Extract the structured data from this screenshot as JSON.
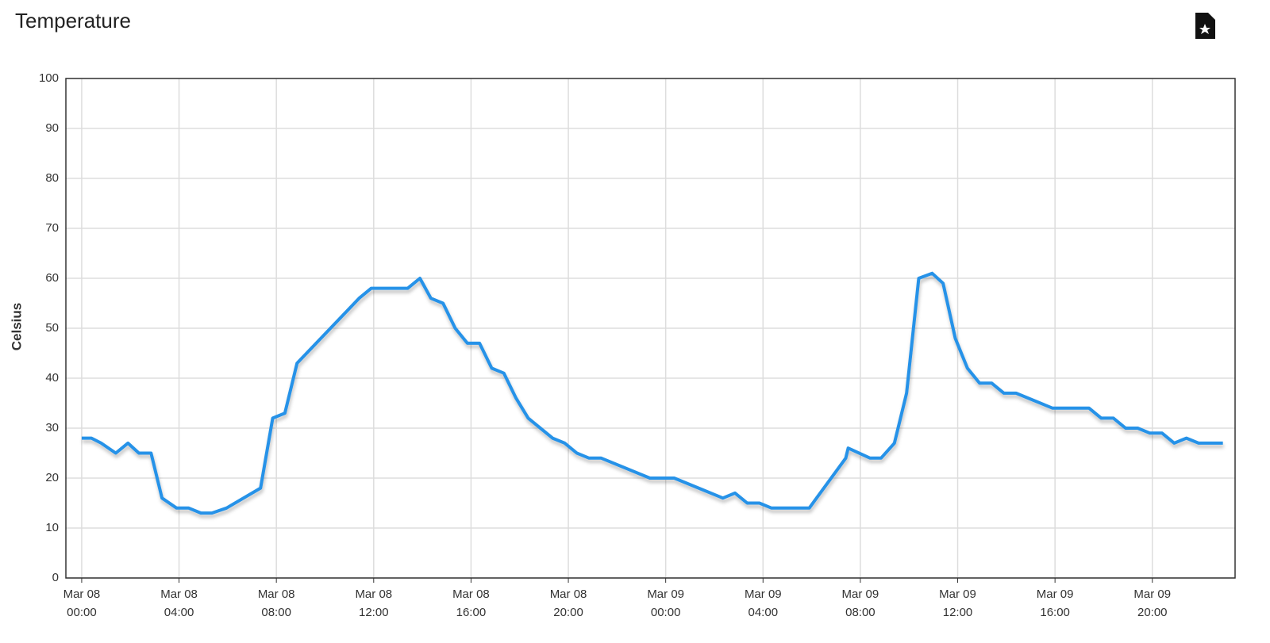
{
  "chart_data": {
    "type": "line",
    "title": "Temperature",
    "y_label": "Celsius",
    "x": [
      0,
      0.4,
      0.8,
      1.4,
      1.9,
      2.35,
      2.85,
      3.3,
      3.9,
      4.4,
      4.9,
      5.35,
      5.95,
      7.35,
      7.85,
      8.35,
      8.85,
      11.4,
      11.9,
      13.4,
      13.9,
      14.35,
      14.85,
      15.35,
      15.85,
      16.35,
      16.85,
      17.35,
      17.85,
      18.35,
      19.35,
      19.85,
      20.35,
      20.85,
      21.35,
      23.35,
      24.35,
      26.35,
      26.85,
      27.35,
      27.85,
      28.35,
      29.9,
      31.4,
      31.5,
      32.4,
      32.85,
      33.4,
      33.9,
      34.4,
      34.95,
      35.4,
      35.9,
      36.4,
      36.9,
      37.4,
      37.9,
      38.4,
      39.9,
      41.4,
      41.9,
      42.4,
      42.9,
      43.4,
      43.9,
      44.4,
      44.9,
      45.4,
      45.9,
      46.9
    ],
    "values": [
      28,
      28,
      27,
      25,
      27,
      25,
      25,
      16,
      14,
      14,
      13,
      13,
      14,
      18,
      32,
      33,
      43,
      56,
      58,
      58,
      60,
      56,
      55,
      50,
      47,
      47,
      42,
      41,
      36,
      32,
      28,
      27,
      25,
      24,
      24,
      20,
      20,
      16,
      17,
      15,
      15,
      14,
      14,
      24,
      26,
      24,
      24,
      27,
      37,
      60,
      61,
      59,
      48,
      42,
      39,
      39,
      37,
      37,
      34,
      34,
      32,
      32,
      30,
      30,
      29,
      29,
      27,
      28,
      27,
      27
    ],
    "color": "#2592e8",
    "xlim": [
      -0.65,
      47.4
    ],
    "xticks": [
      {
        "value": 0,
        "label": "Mar 08 00:00"
      },
      {
        "value": 4,
        "label": "Mar 08 04:00"
      },
      {
        "value": 8,
        "label": "Mar 08 08:00"
      },
      {
        "value": 12,
        "label": "Mar 08 12:00"
      },
      {
        "value": 16,
        "label": "Mar 08 16:00"
      },
      {
        "value": 20,
        "label": "Mar 08 20:00"
      },
      {
        "value": 24,
        "label": "Mar 09 00:00"
      },
      {
        "value": 28,
        "label": "Mar 09 04:00"
      },
      {
        "value": 32,
        "label": "Mar 09 08:00"
      },
      {
        "value": 36,
        "label": "Mar 09 12:00"
      },
      {
        "value": 40,
        "label": "Mar 09 16:00"
      },
      {
        "value": 44,
        "label": "Mar 09 20:00"
      }
    ],
    "ylim": [
      0,
      100
    ],
    "yticks": [
      0,
      10,
      20,
      30,
      40,
      50,
      60,
      70,
      80,
      90,
      100
    ],
    "grid": true
  }
}
